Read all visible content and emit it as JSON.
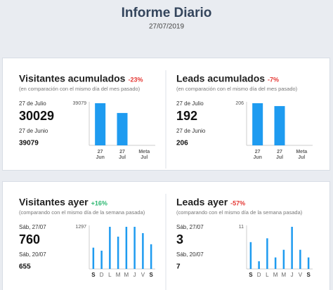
{
  "header": {
    "title": "Informe Diario",
    "date": "27/07/2019"
  },
  "cards": [
    {
      "title": "Visitantes acumulados",
      "change": "-23%",
      "change_color": "#e53935",
      "subtitle": "(en comparación con el mismo día del mes pasado)",
      "current_label": "27 de Julio",
      "current_value": 30029,
      "previous_label": "27 de Junio",
      "previous_value": 39079,
      "chart": {
        "type": "bar",
        "ymax": 39079,
        "color": "#1e9bf0",
        "categories": [
          [
            "27",
            "Jun"
          ],
          [
            "27",
            "Jul"
          ],
          [
            "Meta",
            "Jul"
          ]
        ],
        "values": [
          39079,
          30029,
          null
        ]
      }
    },
    {
      "title": "Leads acumulados",
      "change": "-7%",
      "change_color": "#e53935",
      "subtitle": "(en comparación con el mismo día del mes pasado)",
      "current_label": "27 de Julio",
      "current_value": 192,
      "previous_label": "27 de Junio",
      "previous_value": 206,
      "chart": {
        "type": "bar",
        "ymax": 206,
        "color": "#1e9bf0",
        "categories": [
          [
            "27",
            "Jun"
          ],
          [
            "27",
            "Jul"
          ],
          [
            "Meta",
            "Jul"
          ]
        ],
        "values": [
          206,
          192,
          null
        ]
      }
    },
    {
      "title": "Visitantes ayer",
      "change": "+16%",
      "change_color": "#2eb872",
      "subtitle": "(comparando con el mismo día de la semana pasada)",
      "current_label": "Sáb, 27/07",
      "current_value": 760,
      "previous_label": "Sáb, 20/07",
      "previous_value": 655,
      "chart": {
        "type": "bar",
        "ymax": 1297,
        "color": "#1e9bf0",
        "categories": [
          [
            "S"
          ],
          [
            "D"
          ],
          [
            "L"
          ],
          [
            "M"
          ],
          [
            "M"
          ],
          [
            "J"
          ],
          [
            "V"
          ],
          [
            "S"
          ]
        ],
        "values": [
          655,
          562,
          1297,
          994,
          1297,
          1297,
          1102,
          760
        ]
      }
    },
    {
      "title": "Leads ayer",
      "change": "-57%",
      "change_color": "#e53935",
      "subtitle": "(comparando con el mismo día de la semana pasada)",
      "current_label": "Sáb, 27/07",
      "current_value": 3,
      "previous_label": "Sáb, 20/07",
      "previous_value": 7,
      "chart": {
        "type": "bar",
        "ymax": 11,
        "color": "#1e9bf0",
        "categories": [
          [
            "S"
          ],
          [
            "D"
          ],
          [
            "L"
          ],
          [
            "M"
          ],
          [
            "M"
          ],
          [
            "J"
          ],
          [
            "V"
          ],
          [
            "S"
          ]
        ],
        "values": [
          7,
          2,
          8,
          3,
          5,
          11,
          5,
          3
        ]
      }
    }
  ]
}
